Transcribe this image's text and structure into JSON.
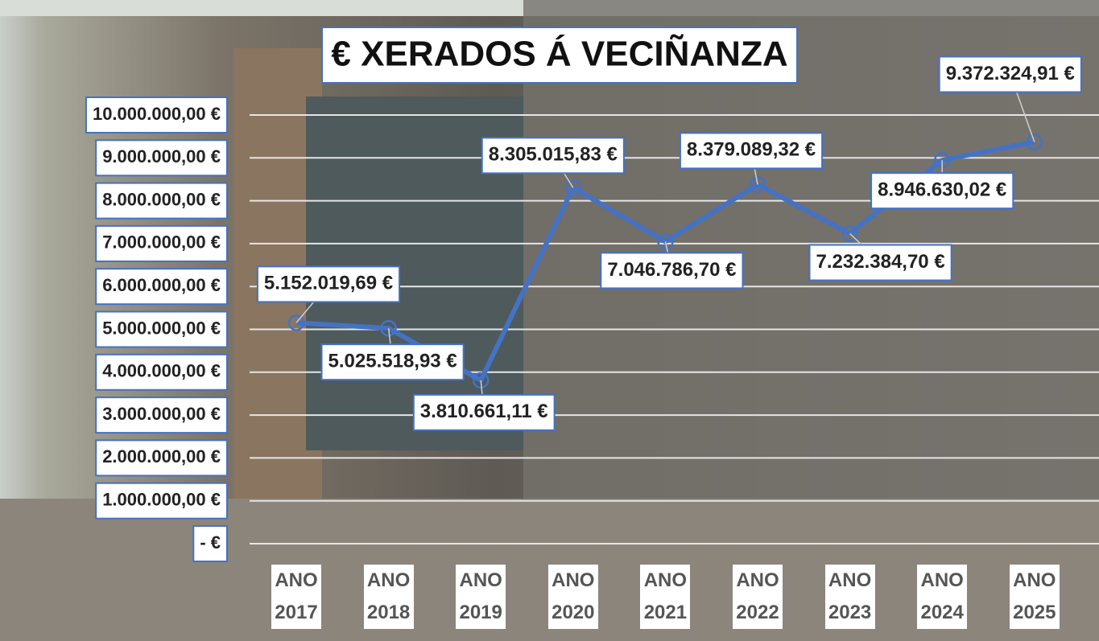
{
  "chart_data": {
    "type": "line",
    "title": "€ XERADOS Á VECIÑANZA",
    "categories": [
      "ANO 2017",
      "ANO 2018",
      "ANO 2019",
      "ANO 2020",
      "ANO 2021",
      "ANO 2022",
      "ANO 2023",
      "ANO 2024",
      "ANO 2025"
    ],
    "series": [
      {
        "color": "#4472c4",
        "values": [
          5152019.69,
          5025518.93,
          3810661.11,
          8305015.83,
          7046786.7,
          8379089.32,
          7232384.7,
          8946630.02,
          9372324.91
        ],
        "value_labels": [
          "5.152.019,69 €",
          "5.025.518,93 €",
          "3.810.661,11 €",
          "8.305.015,83 €",
          "7.046.786,70 €",
          "8.379.089,32 €",
          "7.232.384,70 €",
          "8.946.630,02 €",
          "9.372.324,91 €"
        ]
      }
    ],
    "ylim": [
      0,
      10000000
    ],
    "yticks": [
      {
        "value": 0,
        "label": "-   €"
      },
      {
        "value": 1000000,
        "label": "1.000.000,00 €"
      },
      {
        "value": 2000000,
        "label": "2.000.000,00 €"
      },
      {
        "value": 3000000,
        "label": "3.000.000,00 €"
      },
      {
        "value": 4000000,
        "label": "4.000.000,00 €"
      },
      {
        "value": 5000000,
        "label": "5.000.000,00 €"
      },
      {
        "value": 6000000,
        "label": "6.000.000,00 €"
      },
      {
        "value": 7000000,
        "label": "7.000.000,00 €"
      },
      {
        "value": 8000000,
        "label": "8.000.000,00 €"
      },
      {
        "value": 9000000,
        "label": "9.000.000,00 €"
      },
      {
        "value": 10000000,
        "label": "10.000.000,00 €"
      }
    ],
    "grid": true
  }
}
